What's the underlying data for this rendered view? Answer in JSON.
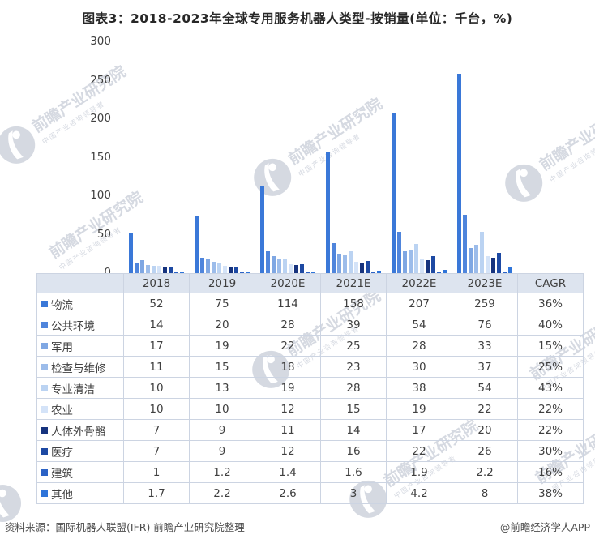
{
  "title": "图表3：2018-2023年全球专用服务机器人类型-按销量(单位：千台，%)",
  "watermark": {
    "text": "前瞻产业研究院",
    "subtext": "中国产业咨询领导者",
    "logo_icon": "qianzhan-bird-logo"
  },
  "footer": {
    "source": "资料来源：国际机器人联盟(IFR)  前瞻产业研究院整理",
    "credit": "@前瞻经济学人APP"
  },
  "chart_data": {
    "type": "bar",
    "title": "2018-2023年全球专用服务机器人类型-按销量",
    "unit": "千台，%",
    "xlabel": "",
    "ylabel": "",
    "ylim": [
      0,
      300
    ],
    "yticks": [
      0,
      50,
      100,
      150,
      200,
      250,
      300
    ],
    "grid": false,
    "legend_position": "data-table-left",
    "categories": [
      "2018",
      "2019",
      "2020E",
      "2021E",
      "2022E",
      "2023E"
    ],
    "cagr_label": "CAGR",
    "series": [
      {
        "name": "物流",
        "values": [
          52,
          75,
          114,
          158,
          207,
          259
        ],
        "cagr": "36%",
        "color": "#3A78D8"
      },
      {
        "name": "公共环境",
        "values": [
          14,
          20,
          28,
          39,
          54,
          76
        ],
        "cagr": "40%",
        "color": "#4F85DC"
      },
      {
        "name": "军用",
        "values": [
          17,
          19,
          22,
          25,
          28,
          33
        ],
        "cagr": "15%",
        "color": "#7FA7E3"
      },
      {
        "name": "检查与维修",
        "values": [
          11,
          15,
          18,
          23,
          30,
          37
        ],
        "cagr": "25%",
        "color": "#9CBCEA"
      },
      {
        "name": "专业清洁",
        "values": [
          10,
          13,
          19,
          28,
          38,
          54
        ],
        "cagr": "43%",
        "color": "#BBD3F2"
      },
      {
        "name": "农业",
        "values": [
          10,
          10,
          12,
          15,
          19,
          22
        ],
        "cagr": "22%",
        "color": "#D4E3F8"
      },
      {
        "name": "人体外骨骼",
        "values": [
          7,
          9,
          11,
          14,
          17,
          20
        ],
        "cagr": "22%",
        "color": "#16337E"
      },
      {
        "name": "医疗",
        "values": [
          7,
          9,
          12,
          16,
          22,
          26
        ],
        "cagr": "30%",
        "color": "#1D49A3"
      },
      {
        "name": "建筑",
        "values": [
          1,
          1.2,
          1.4,
          1.6,
          1.9,
          2.2
        ],
        "cagr": "16%",
        "color": "#2B62C5"
      },
      {
        "name": "其他",
        "values": [
          1.7,
          2.2,
          2.6,
          3,
          4.2,
          8
        ],
        "cagr": "38%",
        "color": "#2E74D9"
      }
    ]
  }
}
